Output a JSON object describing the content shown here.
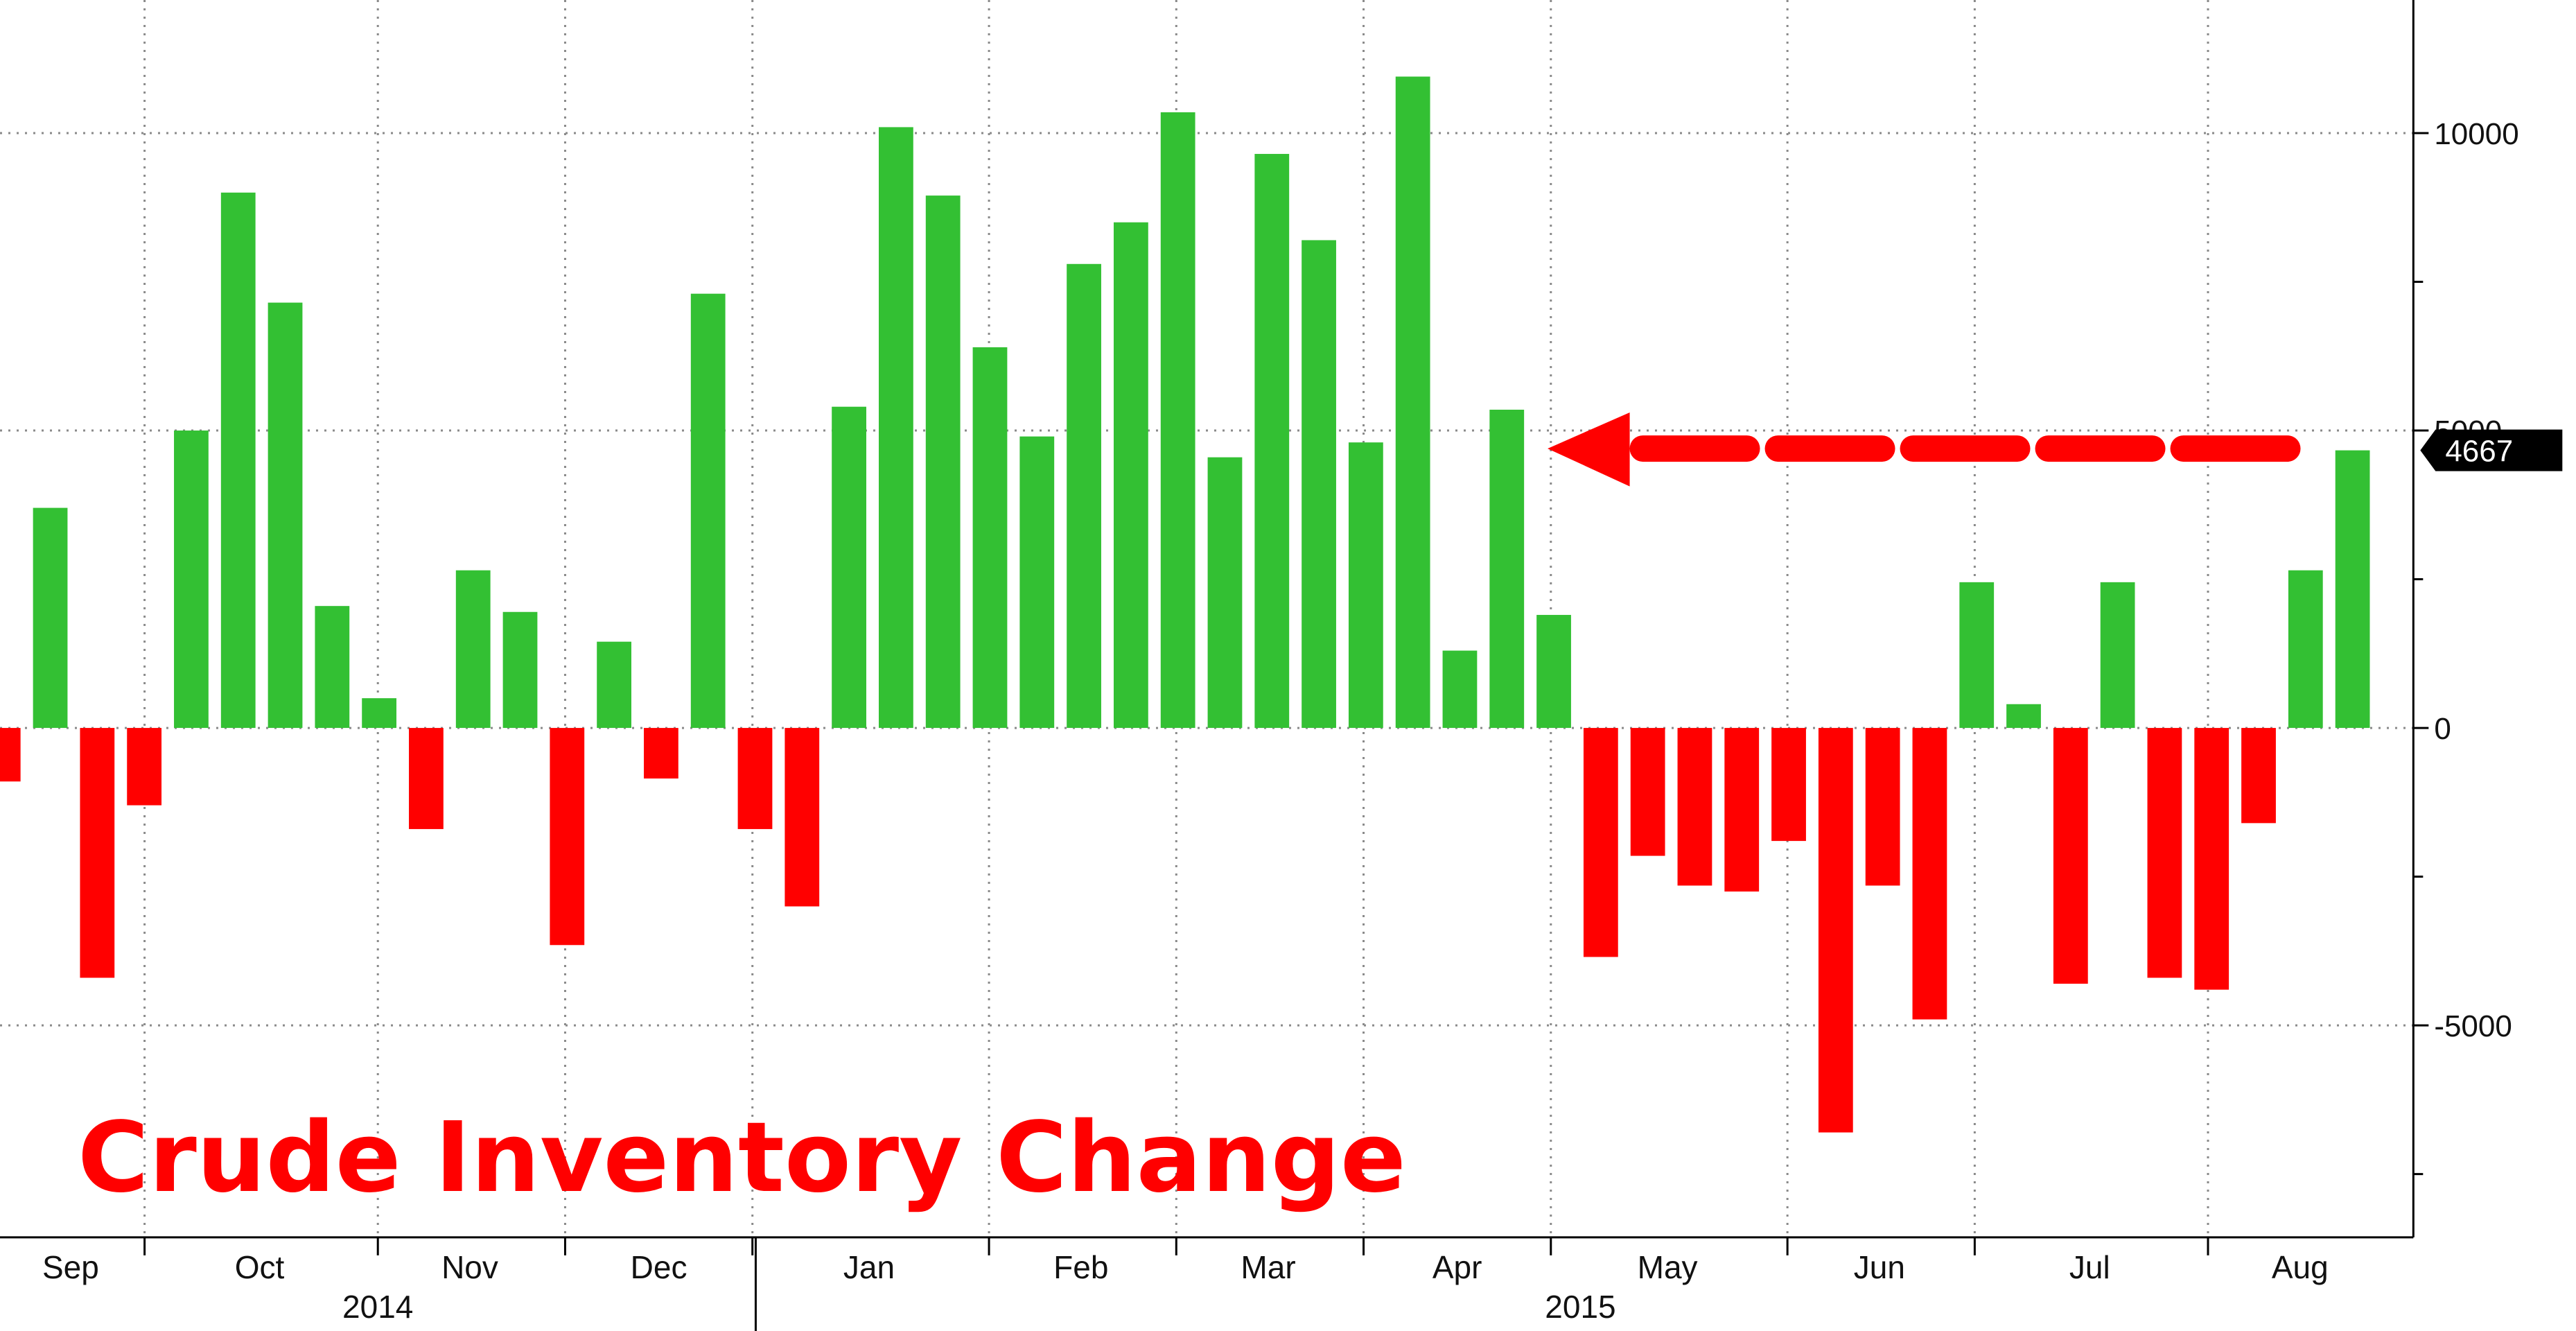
{
  "chart_data": {
    "type": "bar",
    "title": "Crude Inventory Change",
    "xlabel": "",
    "ylabel": "",
    "ylim": [
      -7500,
      12200
    ],
    "yticks": [
      10000,
      5000,
      0,
      -5000
    ],
    "ytick_labels": [
      "10000",
      "5000",
      "0",
      "-5000"
    ],
    "grid": true,
    "month_labels": [
      "Sep",
      "Oct",
      "Nov",
      "Dec",
      "Jan",
      "Feb",
      "Mar",
      "Apr",
      "May",
      "Jun",
      "Jul",
      "Aug"
    ],
    "year_labels": [
      "2014",
      "2015"
    ],
    "colors": {
      "positive": "#33c033",
      "negative": "#ff0000",
      "annotation": "#ff0000",
      "last_label_bg": "#000000",
      "last_label_text": "#ffffff"
    },
    "last_value_label": "4667",
    "values": [
      -900,
      3700,
      -4200,
      -1300,
      5000,
      9000,
      7150,
      2050,
      500,
      -1700,
      2650,
      1950,
      -3650,
      1450,
      -850,
      7300,
      -1700,
      -3000,
      5400,
      10100,
      8950,
      6400,
      4900,
      7800,
      8500,
      10350,
      4550,
      9650,
      8200,
      4800,
      10950,
      1300,
      5350,
      1900,
      -3850,
      -2150,
      -2650,
      -2750,
      -1900,
      -6800,
      -2650,
      -4900,
      2450,
      400,
      -4300,
      2450,
      -4200,
      -4400,
      -1600,
      2650,
      4667
    ]
  }
}
